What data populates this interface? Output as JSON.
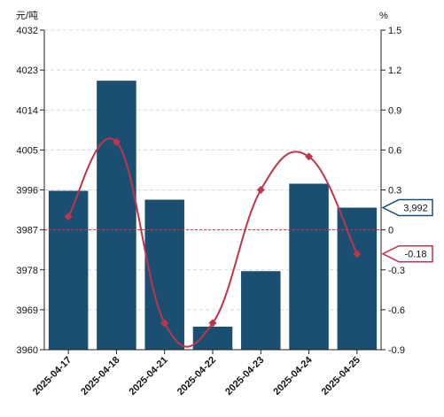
{
  "chart_data": {
    "type": "bar",
    "categories": [
      "2025-04-17",
      "2025-04-18",
      "2025-04-21",
      "2025-04-22",
      "2025-04-23",
      "2025-04-24",
      "2025-04-25"
    ],
    "series": [
      {
        "type": "bar",
        "axis": "left",
        "color": "#1b4f72",
        "values": [
          3995.8,
          4020.6,
          3993.8,
          3965.2,
          3977.7,
          3997.4,
          3992.0
        ]
      },
      {
        "type": "line",
        "axis": "right",
        "color": "#c0344e",
        "smooth": true,
        "values": [
          0.1,
          0.66,
          -0.7,
          -0.7,
          0.3,
          0.55,
          -0.18
        ]
      }
    ],
    "y_left": {
      "unit": "元/吨",
      "range": [
        3960,
        4032
      ],
      "ticks": [
        "3960",
        "3969",
        "3978",
        "3987",
        "3996",
        "4005",
        "4014",
        "4023",
        "4032"
      ]
    },
    "y_right": {
      "unit": "%",
      "range": [
        -0.9,
        1.5
      ],
      "ticks": [
        "-0.9",
        "-0.6",
        "-0.3",
        "0",
        "0.3",
        "0.6",
        "0.9",
        "1.2",
        "1.5"
      ]
    },
    "reference_line": {
      "axis": "left",
      "value": 3987,
      "color": "#e03030",
      "style": "dashed"
    },
    "callouts": [
      {
        "axis": "left",
        "value": 3992,
        "label": "3,992",
        "color": "#1b4f72"
      },
      {
        "axis": "right",
        "value": -0.18,
        "label": "-0.18",
        "color": "#c0344e"
      }
    ],
    "grid": true,
    "legend": "none"
  }
}
